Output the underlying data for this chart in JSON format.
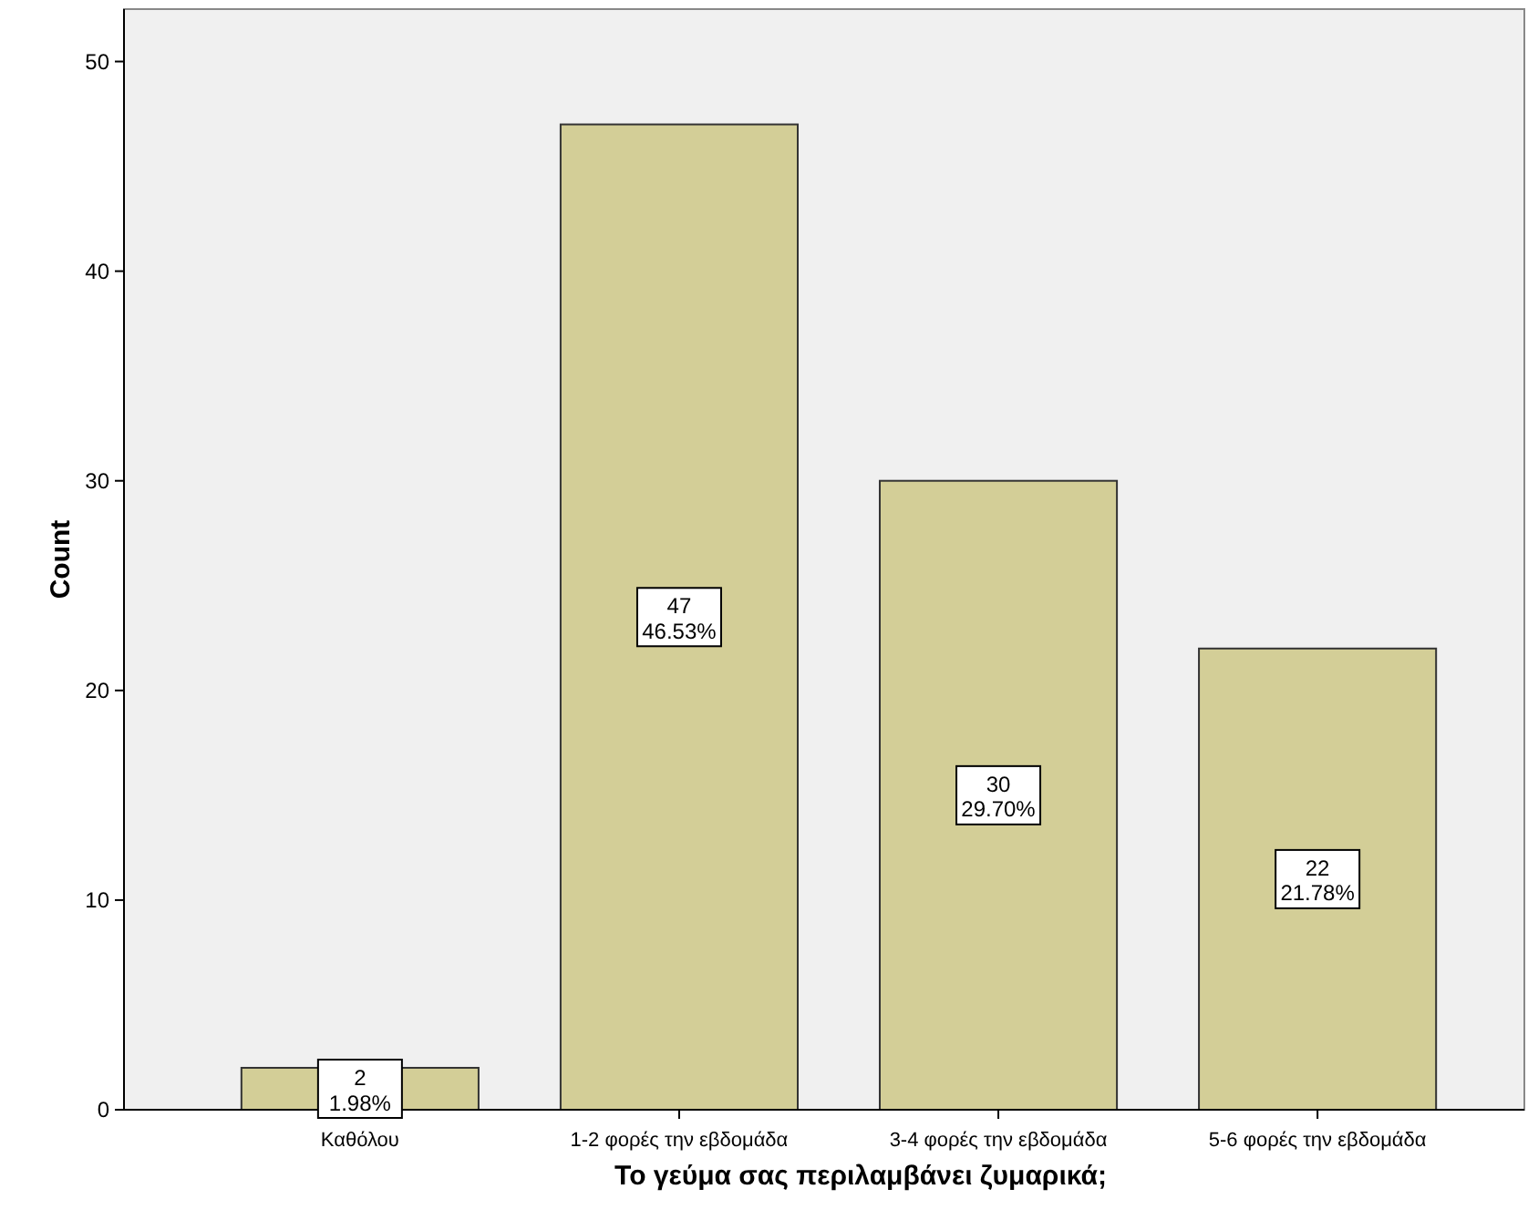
{
  "chart_data": {
    "type": "bar",
    "xlabel": "Το γεύμα σας περιλαμβάνει ζυμαρικά;",
    "ylabel": "Count",
    "categories": [
      "Καθόλου",
      "1-2 φορές την εβδομάδα",
      "3-4 φορές την εβδομάδα",
      "5-6 φορές την εβδομάδα"
    ],
    "values": [
      2,
      47,
      30,
      22
    ],
    "value_labels": [
      "2\n1.98%",
      "47\n46.53%",
      "30\n29.70%",
      "22\n21.78%"
    ],
    "color": "#d3ce97",
    "ylim": [
      0,
      52.5
    ],
    "yticks": [
      0,
      10,
      20,
      30,
      40,
      50
    ],
    "grid": false
  }
}
